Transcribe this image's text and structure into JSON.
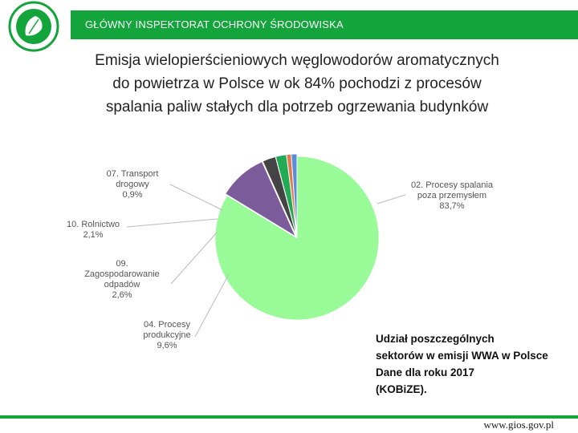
{
  "header": {
    "title": "GŁÓWNY INSPEKTORAT OCHRONY ŚRODOWISKA"
  },
  "headline": {
    "lines": [
      "Emisja wielopierścieniowych węglowodorów aromatycznych",
      "do powietrza w Polsce w ok 84% pochodzi z procesów",
      "spalania paliw stałych dla potrzeb ogrzewania budynków"
    ]
  },
  "note": {
    "lines": [
      "Udział poszczególnych",
      "sektorów w emisji WWA w Polsce",
      "Dane dla roku 2017",
      " (KOBiZE)."
    ]
  },
  "footer": {
    "url": "www.gios.gov.pl"
  },
  "colors": {
    "brand_green": "#13a43c",
    "slice_spalanie": "#98fb98",
    "slice_produkcyjne": "#7b5b99",
    "slice_odpady": "#444444",
    "slice_rolnictwo": "#22aa55",
    "slice_transport": "#e07a50",
    "slice_other": "#5b8ed6"
  },
  "chart_data": {
    "type": "pie",
    "title": "",
    "slices": [
      {
        "label_lines": [
          "02. Procesy spalania",
          "poza przemysłem",
          "83,7%"
        ],
        "value": 83.7,
        "color": "#98fb98"
      },
      {
        "label_lines": [
          "04. Procesy",
          "produkcyjne",
          "9,6%"
        ],
        "value": 9.6,
        "color": "#7b5b99"
      },
      {
        "label_lines": [
          "09.",
          "Zagospodarowanie",
          "odpadów",
          "2,6%"
        ],
        "value": 2.6,
        "color": "#444444"
      },
      {
        "label_lines": [
          "10. Rolnictwo",
          "2,1%"
        ],
        "value": 2.1,
        "color": "#22aa55"
      },
      {
        "label_lines": [
          "07. Transport",
          "drogowy",
          "0,9%"
        ],
        "value": 0.9,
        "color": "#e07a50"
      },
      {
        "label_lines": [],
        "value": 1.1,
        "color": "#5b8ed6"
      }
    ]
  }
}
